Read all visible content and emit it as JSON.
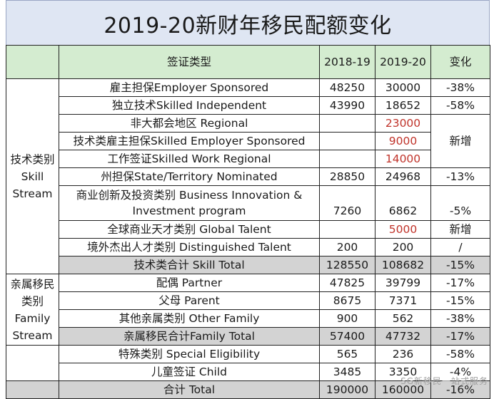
{
  "title": "2019-20新财年移民配额变化",
  "header": {
    "visa_type": "签证类型",
    "y1": "2018-19",
    "y2": "2019-20",
    "change": "变化"
  },
  "categories": {
    "skill": "技术类别 Skill Stream",
    "family": "亲属移民 类别 Family Stream"
  },
  "rows": [
    {
      "name": "雇主担保Employer Sponsored",
      "y1": "48250",
      "y2": "30000",
      "change": "-38%"
    },
    {
      "name": "独立技术Skilled Independent",
      "y1": "43990",
      "y2": "18652",
      "change": "-58%"
    },
    {
      "name": "非大都会地区 Regional",
      "y1": "",
      "y2": "23000",
      "change": "新增"
    },
    {
      "name": "技术类雇主担保Skilled Employer Sponsored",
      "y1": "",
      "y2": "9000",
      "change": ""
    },
    {
      "name": "工作签证Skilled Work Regional",
      "y1": "",
      "y2": "14000",
      "change": ""
    },
    {
      "name": "州担保State/Territory Nominated",
      "y1": "28850",
      "y2": "24968",
      "change": "-13%"
    },
    {
      "name": "商业创新及投资类别 Business Innovation & Investment program",
      "y1": "7260",
      "y2": "6862",
      "change": "-5%"
    },
    {
      "name": "全球商业天才类别 Global Talent",
      "y1": "",
      "y2": "5000",
      "change": "新增"
    },
    {
      "name": "境外杰出人才类别 Distinguished Talent",
      "y1": "200",
      "y2": "200",
      "change": "/"
    },
    {
      "name": "技术类合计 Skill Total",
      "y1": "128550",
      "y2": "108682",
      "change": "-15%"
    },
    {
      "name": "配偶 Partner",
      "y1": "47825",
      "y2": "39799",
      "change": "-17%"
    },
    {
      "name": "父母 Parent",
      "y1": "8675",
      "y2": "7371",
      "change": "-15%"
    },
    {
      "name": "其他亲属类别 Other Family",
      "y1": "900",
      "y2": "562",
      "change": "-38%"
    },
    {
      "name": "亲属移民合计Family Total",
      "y1": "57400",
      "y2": "47732",
      "change": "-17%"
    },
    {
      "name": "特殊类别 Special Eligibility",
      "y1": "565",
      "y2": "236",
      "change": "-58%"
    },
    {
      "name": "儿童签证 Child",
      "y1": "3485",
      "y2": "3350",
      "change": "-4%"
    },
    {
      "name": "合计 Total",
      "y1": "190000",
      "y2": "160000",
      "change": "-16%"
    }
  ],
  "watermark": "SG新移民一站式服务"
}
